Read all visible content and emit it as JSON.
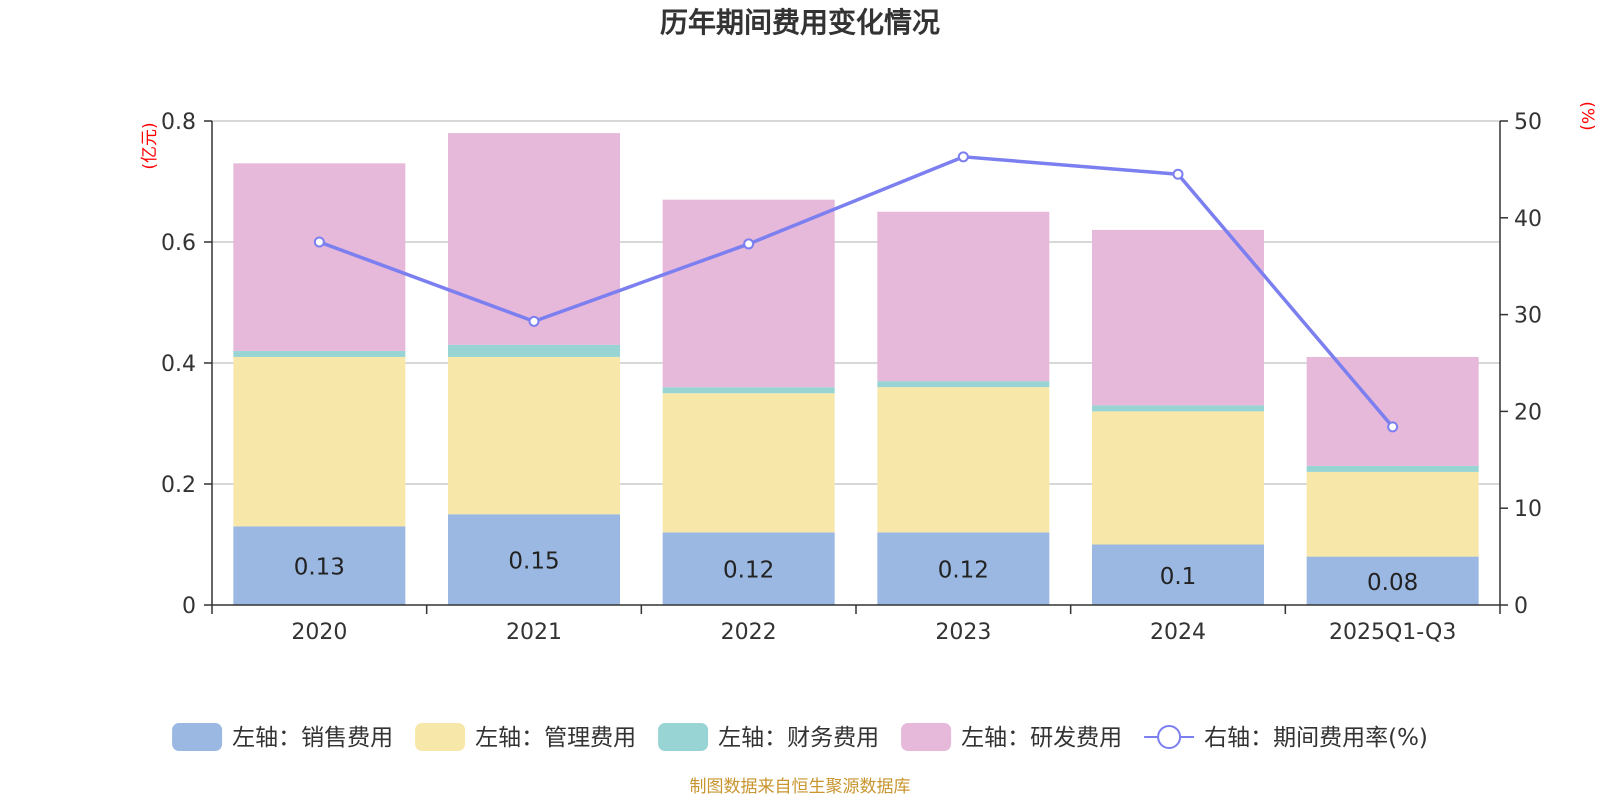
{
  "chart_data": {
    "type": "bar",
    "stacked": true,
    "title": "历年期间费用变化情况",
    "categories": [
      "2020",
      "2021",
      "2022",
      "2023",
      "2024",
      "2025Q1-Q3"
    ],
    "series": [
      {
        "name": "左轴：销售费用",
        "axis": "left",
        "type": "bar",
        "color": "#9bb8e2",
        "values": [
          0.13,
          0.15,
          0.12,
          0.12,
          0.1,
          0.08
        ],
        "labels": [
          "0.13",
          "0.15",
          "0.12",
          "0.12",
          "0.1",
          "0.08"
        ]
      },
      {
        "name": "左轴：管理费用",
        "axis": "left",
        "type": "bar",
        "color": "#f7e7a9",
        "values": [
          0.28,
          0.26,
          0.23,
          0.24,
          0.22,
          0.14
        ]
      },
      {
        "name": "左轴：财务费用",
        "axis": "left",
        "type": "bar",
        "color": "#98d4d4",
        "values": [
          0.01,
          0.02,
          0.01,
          0.01,
          0.01,
          0.01
        ]
      },
      {
        "name": "左轴：研发费用",
        "axis": "left",
        "type": "bar",
        "color": "#e6b8d9",
        "values": [
          0.31,
          0.35,
          0.31,
          0.28,
          0.29,
          0.18
        ]
      },
      {
        "name": "右轴：期间费用率(%)",
        "axis": "right",
        "type": "line",
        "color": "#7b7ff0",
        "values": [
          37.5,
          29.3,
          37.3,
          46.3,
          44.5,
          18.4
        ]
      }
    ],
    "left_axis": {
      "unit": "(亿元)",
      "ylim": [
        0,
        0.8
      ],
      "ticks": [
        "0",
        "0.2",
        "0.4",
        "0.6",
        "0.8"
      ]
    },
    "right_axis": {
      "unit": "(%)",
      "ylim": [
        0,
        50
      ],
      "ticks": [
        "0",
        "10",
        "20",
        "30",
        "40",
        "50"
      ]
    },
    "grid": true,
    "legend_position": "bottom"
  },
  "colors": {
    "unit_label": "#ff0000",
    "source": "#c8952f",
    "grid": "#cccccc",
    "axis": "#333333"
  },
  "source_note": "制图数据来自恒生聚源数据库"
}
